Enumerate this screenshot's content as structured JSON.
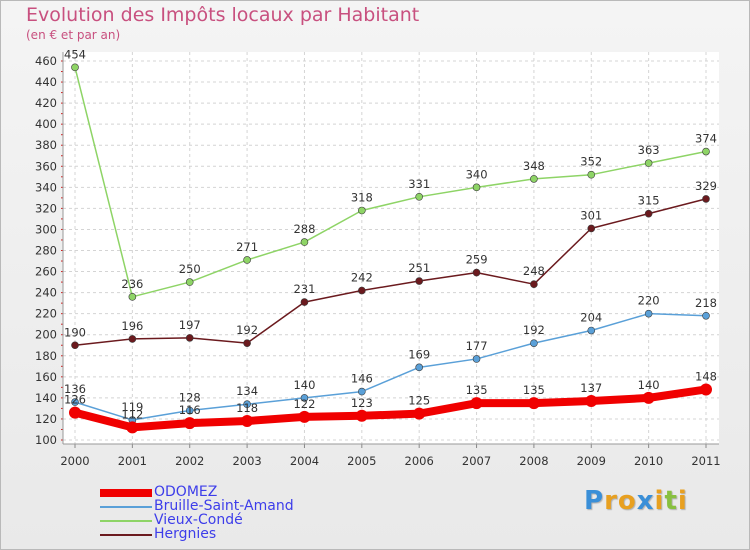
{
  "header": {
    "title": "Evolution des Impôts locaux par Habitant",
    "subtitle": "(en € et par an)"
  },
  "logo": {
    "letters": [
      "P",
      "r",
      "o",
      "x",
      "i",
      "t",
      "i"
    ],
    "colors": [
      "#3a8fd8",
      "#e8a020",
      "#e8a020",
      "#3a8fd8",
      "#e8a020",
      "#88c040",
      "#e8a020"
    ]
  },
  "chart_data": {
    "type": "line",
    "title": "Evolution des Impôts locaux par Habitant",
    "subtitle": "(en € et par an)",
    "xlabel": "",
    "ylabel": "",
    "x": [
      "2000",
      "2001",
      "2002",
      "2003",
      "2004",
      "2005",
      "2006",
      "2007",
      "2008",
      "2009",
      "2010",
      "2011"
    ],
    "ylim": [
      100,
      460
    ],
    "yticks": [
      100,
      120,
      140,
      160,
      180,
      200,
      220,
      240,
      260,
      280,
      300,
      320,
      340,
      360,
      380,
      400,
      420,
      440,
      460
    ],
    "grid": true,
    "legend_position": "bottom-left",
    "series": [
      {
        "name": "Hergnies",
        "color": "#6b1a1e",
        "values": [
          190,
          196,
          197,
          192,
          231,
          242,
          251,
          259,
          248,
          301,
          315,
          329
        ]
      },
      {
        "name": "Vieux-Condé",
        "color": "#8ed466",
        "values": [
          454,
          236,
          250,
          271,
          288,
          318,
          331,
          340,
          348,
          352,
          363,
          374
        ]
      },
      {
        "name": "Bruille-Saint-Amand",
        "color": "#5aa0d8",
        "values": [
          136,
          119,
          128,
          134,
          140,
          146,
          169,
          177,
          192,
          204,
          220,
          218
        ]
      },
      {
        "name": "ODOMEZ",
        "color": "#f00000",
        "values": [
          126,
          112,
          116,
          118,
          122,
          123,
          125,
          135,
          135,
          137,
          140,
          148
        ]
      }
    ]
  },
  "legend": {
    "items": [
      {
        "label": "ODOMEZ",
        "color": "#f00000"
      },
      {
        "label": "Bruille-Saint-Amand",
        "color": "#5aa0d8"
      },
      {
        "label": "Vieux-Condé",
        "color": "#8ed466"
      },
      {
        "label": "Hergnies",
        "color": "#6b1a1e"
      }
    ]
  }
}
